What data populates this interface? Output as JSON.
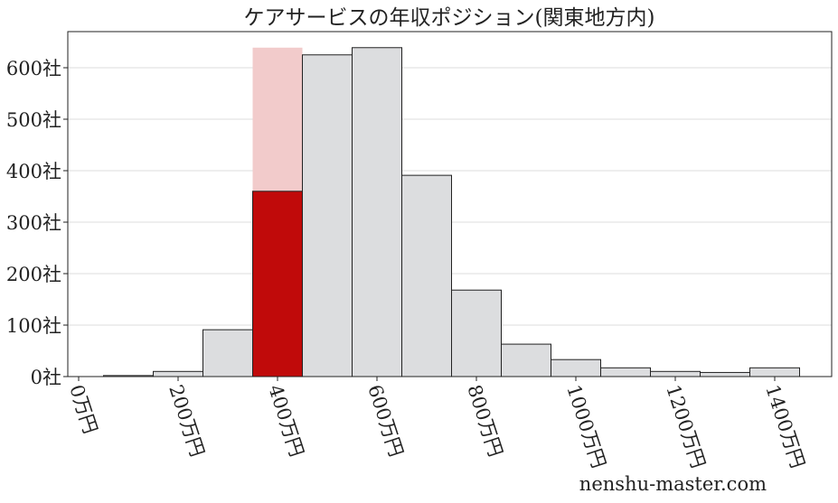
{
  "chart_data": {
    "type": "bar",
    "title": "ケアサービスの年収ポジション(関東地方内)",
    "xlabel": "",
    "ylabel": "",
    "bin_edges": [
      50,
      150,
      250,
      350,
      450,
      550,
      650,
      750,
      850,
      950,
      1050,
      1150,
      1250,
      1350,
      1450
    ],
    "values": [
      2,
      10,
      91,
      360,
      625,
      639,
      391,
      168,
      63,
      33,
      17,
      10,
      8,
      17
    ],
    "highlight_bin_index": 3,
    "highlight_background_value": 639,
    "xlim": [
      -10,
      1500
    ],
    "ylim": [
      0,
      670
    ],
    "x_ticks": [
      0,
      200,
      400,
      600,
      800,
      1000,
      1200,
      1400
    ],
    "x_tick_labels": [
      "0万円",
      "200万円",
      "400万円",
      "600万円",
      "800万円",
      "1000万円",
      "1200万円",
      "1400万円"
    ],
    "y_ticks": [
      0,
      100,
      200,
      300,
      400,
      500,
      600
    ],
    "y_tick_labels": [
      "0社",
      "100社",
      "200社",
      "300社",
      "400社",
      "500社",
      "600社"
    ],
    "grid": "horizontal",
    "colors": {
      "bar": "#dcdddf",
      "highlight": "#c00a0a",
      "highlight_background": "#f2cbcb",
      "grid": "#dddddd"
    }
  },
  "watermark": "nenshu-master.com"
}
